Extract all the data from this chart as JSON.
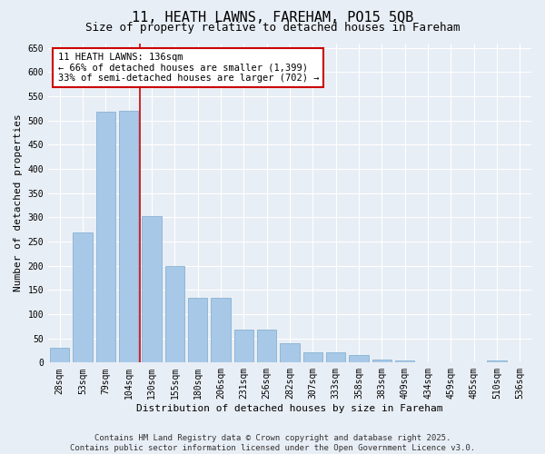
{
  "title": "11, HEATH LAWNS, FAREHAM, PO15 5QB",
  "subtitle": "Size of property relative to detached houses in Fareham",
  "xlabel": "Distribution of detached houses by size in Fareham",
  "ylabel": "Number of detached properties",
  "categories": [
    "28sqm",
    "53sqm",
    "79sqm",
    "104sqm",
    "130sqm",
    "155sqm",
    "180sqm",
    "206sqm",
    "231sqm",
    "256sqm",
    "282sqm",
    "307sqm",
    "333sqm",
    "358sqm",
    "383sqm",
    "409sqm",
    "434sqm",
    "459sqm",
    "485sqm",
    "510sqm",
    "536sqm"
  ],
  "values": [
    30,
    268,
    519,
    521,
    303,
    200,
    133,
    133,
    68,
    68,
    40,
    22,
    22,
    15,
    7,
    5,
    1,
    1,
    1,
    4,
    1
  ],
  "bar_color": "#a8c8e8",
  "bar_edge_color": "#7aaace",
  "vline_x_pos": 3.5,
  "vline_color": "#cc0000",
  "annotation_text": "11 HEATH LAWNS: 136sqm\n← 66% of detached houses are smaller (1,399)\n33% of semi-detached houses are larger (702) →",
  "annotation_box_color": "#ffffff",
  "annotation_box_edge": "#cc0000",
  "ylim": [
    0,
    660
  ],
  "yticks": [
    0,
    50,
    100,
    150,
    200,
    250,
    300,
    350,
    400,
    450,
    500,
    550,
    600,
    650
  ],
  "footer_line1": "Contains HM Land Registry data © Crown copyright and database right 2025.",
  "footer_line2": "Contains public sector information licensed under the Open Government Licence v3.0.",
  "background_color": "#e8eef5",
  "plot_bg_color": "#e8eef5",
  "title_fontsize": 11,
  "subtitle_fontsize": 9,
  "axis_label_fontsize": 8,
  "tick_fontsize": 7,
  "footer_fontsize": 6.5,
  "annotation_fontsize": 7.5,
  "ylabel_fontsize": 8
}
